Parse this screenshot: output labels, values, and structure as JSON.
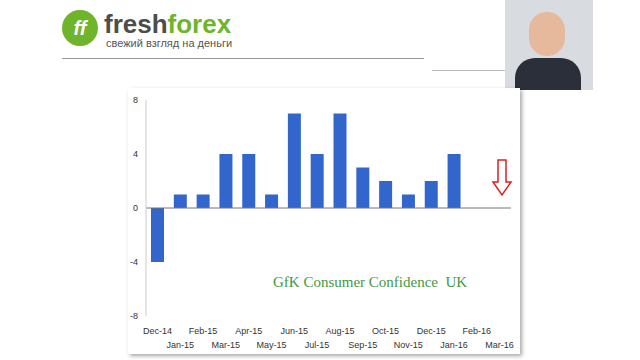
{
  "slide": {
    "brand": "freshforex",
    "logo_mark": "ff",
    "tagline": "свежий взгляд на деньги"
  },
  "chart_data": {
    "type": "bar",
    "title": "GfK Consumer Confidence  UK",
    "categories": [
      "Dec-14",
      "Jan-15",
      "Feb-15",
      "Mar-15",
      "Apr-15",
      "May-15",
      "Jun-15",
      "Jul-15",
      "Aug-15",
      "Sep-15",
      "Oct-15",
      "Nov-15",
      "Dec-15",
      "Jan-16",
      "Feb-16",
      "Mar-16"
    ],
    "values": [
      -4,
      1,
      1,
      4,
      4,
      1,
      7,
      4,
      7,
      3,
      2,
      1,
      2,
      4,
      null,
      null
    ],
    "color": "#3366cc",
    "ylim": [
      -8,
      8
    ],
    "yticks": [
      -8,
      -4,
      0,
      4,
      8
    ],
    "grid": false
  }
}
